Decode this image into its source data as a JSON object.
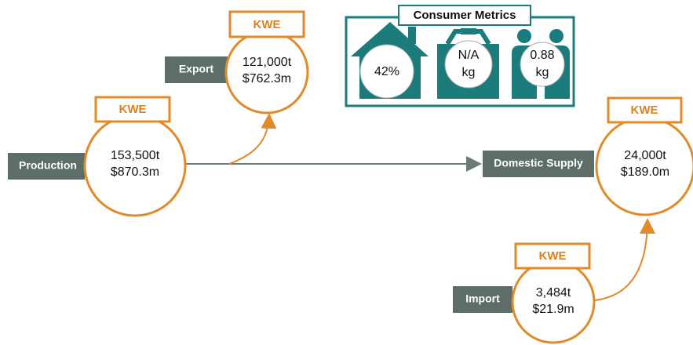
{
  "consumer_metrics": {
    "title": "Consumer Metrics",
    "items": [
      {
        "lines": [
          "42%"
        ]
      },
      {
        "lines": [
          "N/A",
          "kg"
        ]
      },
      {
        "lines": [
          "0.88",
          "kg"
        ]
      }
    ]
  },
  "nodes": [
    {
      "label": "Production",
      "tag": "KWE",
      "lines": [
        "153,500t",
        "$870.3m"
      ]
    },
    {
      "label": "Export",
      "tag": "KWE",
      "lines": [
        "121,000t",
        "$762.3m"
      ]
    },
    {
      "label": "Domestic Supply",
      "tag": "KWE",
      "lines": [
        "24,000t",
        "$189.0m"
      ]
    },
    {
      "label": "Import",
      "tag": "KWE",
      "lines": [
        "3,484t",
        "$21.9m"
      ]
    }
  ]
}
